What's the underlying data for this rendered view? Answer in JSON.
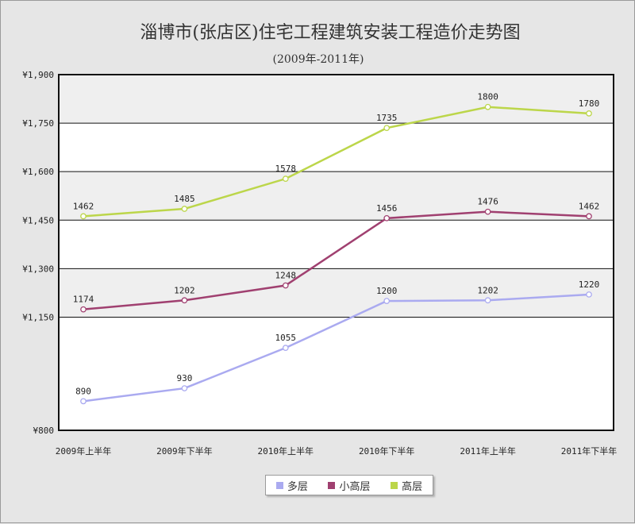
{
  "chart_data": {
    "type": "line",
    "title": "淄博市(张店区)住宅工程建筑安装工程造价走势图",
    "subtitle": "(2009年-2011年)",
    "categories": [
      "2009年上半年",
      "2009年下半年",
      "2010年上半年",
      "2010年下半年",
      "2011年上半年",
      "2011年下半年"
    ],
    "series": [
      {
        "name": "多层",
        "color": "#aaaaf0",
        "values": [
          890,
          930,
          1055,
          1200,
          1202,
          1220
        ]
      },
      {
        "name": "小高层",
        "color": "#a04070",
        "values": [
          1174,
          1202,
          1248,
          1456,
          1476,
          1462
        ]
      },
      {
        "name": "高层",
        "color": "#bcd64a",
        "values": [
          1462,
          1485,
          1578,
          1735,
          1800,
          1780
        ]
      }
    ],
    "y_ticks": [
      {
        "value": 800,
        "label": "¥800"
      },
      {
        "value": 1150,
        "label": "¥1,150"
      },
      {
        "value": 1300,
        "label": "¥1,300"
      },
      {
        "value": 1450,
        "label": "¥1,450"
      },
      {
        "value": 1600,
        "label": "¥1,600"
      },
      {
        "value": 1750,
        "label": "¥1,750"
      },
      {
        "value": 1900,
        "label": "¥1,900"
      }
    ],
    "ylim": [
      800,
      1900
    ],
    "xlabel": "",
    "ylabel": "",
    "grid": true,
    "legend_position": "bottom-center",
    "data_labels": true
  }
}
